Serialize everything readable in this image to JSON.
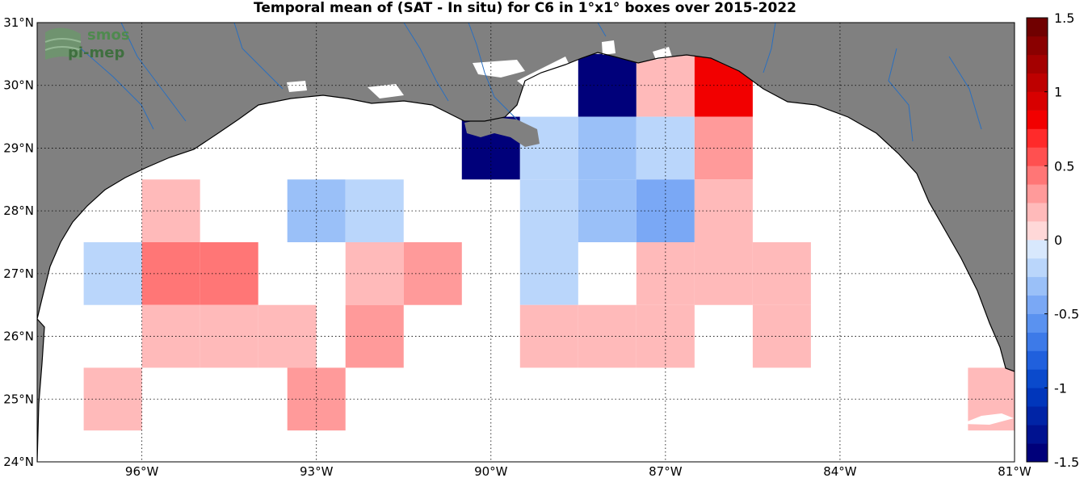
{
  "title": "Temporal mean of (SAT - In situ) for C6 in 1°x1° boxes over 2015-2022",
  "logo": {
    "line1": "smos",
    "line2": "pi-mep"
  },
  "colors": {
    "land": "#808080",
    "ocean": "#ffffff",
    "river": "#2a6fbf",
    "coast": "#000000",
    "cb_neg": [
      "#00007a",
      "#001290",
      "#0024a6",
      "#0036bb",
      "#0a4acc",
      "#2060dd",
      "#3d7ae8",
      "#5a92f0",
      "#7aa8f5",
      "#9ac0f8",
      "#bad6fb",
      "#d8e8fd"
    ],
    "cb_pos": [
      "#ffd8d8",
      "#ffbaba",
      "#ff9a9a",
      "#ff7676",
      "#ff5050",
      "#ff2a2a",
      "#f20000",
      "#d80000",
      "#be0000",
      "#a40000",
      "#8a0000",
      "#700000"
    ]
  },
  "axes": {
    "lon_range": [
      -97.8,
      -81
    ],
    "lat_range": [
      24,
      31
    ],
    "x_ticks": [
      {
        "value": -96,
        "label": "96°W"
      },
      {
        "value": -93,
        "label": "93°W"
      },
      {
        "value": -90,
        "label": "90°W"
      },
      {
        "value": -87,
        "label": "87°W"
      },
      {
        "value": -84,
        "label": "84°W"
      },
      {
        "value": -81,
        "label": "81°W"
      }
    ],
    "y_ticks": [
      {
        "value": 24,
        "label": "24°N"
      },
      {
        "value": 25,
        "label": "25°N"
      },
      {
        "value": 26,
        "label": "26°N"
      },
      {
        "value": 27,
        "label": "27°N"
      },
      {
        "value": 28,
        "label": "28°N"
      },
      {
        "value": 29,
        "label": "29°N"
      },
      {
        "value": 30,
        "label": "30°N"
      },
      {
        "value": 31,
        "label": "31°N"
      }
    ],
    "grid": true
  },
  "colorbar": {
    "range": [
      -1.5,
      1.5
    ],
    "ticks": [
      {
        "value": 1.5,
        "label": "1.5"
      },
      {
        "value": 1,
        "label": "1"
      },
      {
        "value": 0.5,
        "label": "0.5"
      },
      {
        "value": 0,
        "label": "0"
      },
      {
        "value": -0.5,
        "label": "-0.5"
      },
      {
        "value": -1,
        "label": "-1"
      },
      {
        "value": -1.5,
        "label": "-1.5"
      }
    ]
  },
  "chart_data": {
    "type": "heatmap",
    "cell_size_deg": 1,
    "cells": [
      {
        "lon": -95.5,
        "lat": 28,
        "value": 0.15
      },
      {
        "lon": -93,
        "lat": 28,
        "value": -0.3
      },
      {
        "lon": -92,
        "lat": 28,
        "value": -0.15
      },
      {
        "lon": -96.5,
        "lat": 27,
        "value": -0.25
      },
      {
        "lon": -95.5,
        "lat": 27,
        "value": 0.45
      },
      {
        "lon": -94.5,
        "lat": 27,
        "value": 0.45
      },
      {
        "lon": -92,
        "lat": 27,
        "value": 0.2
      },
      {
        "lon": -91,
        "lat": 27,
        "value": 0.3
      },
      {
        "lon": -95.5,
        "lat": 26,
        "value": 0.15
      },
      {
        "lon": -94.5,
        "lat": 26,
        "value": 0.15
      },
      {
        "lon": -93.5,
        "lat": 26,
        "value": 0.15
      },
      {
        "lon": -92,
        "lat": 26,
        "value": 0.3
      },
      {
        "lon": -96.5,
        "lat": 25,
        "value": 0.15
      },
      {
        "lon": -93,
        "lat": 25,
        "value": 0.3
      },
      {
        "lon": -90,
        "lat": 29,
        "value": -1.5
      },
      {
        "lon": -89,
        "lat": 29,
        "value": -0.2
      },
      {
        "lon": -88,
        "lat": 30,
        "value": -1.5
      },
      {
        "lon": -88,
        "lat": 29,
        "value": -0.35
      },
      {
        "lon": -87,
        "lat": 30,
        "value": 0.15
      },
      {
        "lon": -87,
        "lat": 29,
        "value": -0.15
      },
      {
        "lon": -86,
        "lat": 30,
        "value": 0.85
      },
      {
        "lon": -86,
        "lat": 29,
        "value": 0.3
      },
      {
        "lon": -89,
        "lat": 28,
        "value": -0.15
      },
      {
        "lon": -88,
        "lat": 28,
        "value": -0.3
      },
      {
        "lon": -87,
        "lat": 28,
        "value": -0.5
      },
      {
        "lon": -86,
        "lat": 28,
        "value": 0.15
      },
      {
        "lon": -89,
        "lat": 27,
        "value": -0.15
      },
      {
        "lon": -87,
        "lat": 27,
        "value": 0.15
      },
      {
        "lon": -86,
        "lat": 27,
        "value": 0.15
      },
      {
        "lon": -85,
        "lat": 27,
        "value": 0.15
      },
      {
        "lon": -89,
        "lat": 26,
        "value": 0.15
      },
      {
        "lon": -88,
        "lat": 26,
        "value": 0.15
      },
      {
        "lon": -87,
        "lat": 26,
        "value": 0.15
      },
      {
        "lon": -85,
        "lat": 26,
        "value": 0.15
      },
      {
        "lon": -81.3,
        "lat": 25,
        "value": 0.15
      }
    ]
  }
}
